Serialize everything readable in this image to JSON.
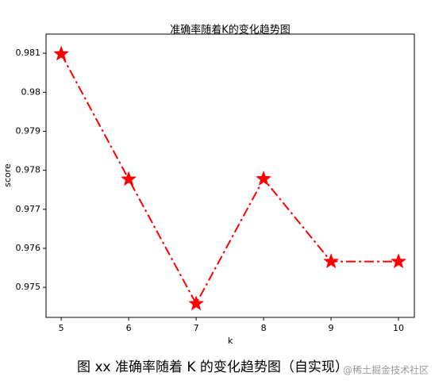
{
  "chart_data": {
    "type": "line",
    "title": "准确率随着K的变化趋势图",
    "xlabel": "k",
    "ylabel": "score",
    "x": [
      5,
      6,
      7,
      8,
      9,
      10
    ],
    "series": [
      {
        "name": "score",
        "color": "#ff0000",
        "linestyle": "dashdot",
        "marker": "star",
        "values": [
          0.98098,
          0.97777,
          0.97458,
          0.97778,
          0.97566,
          0.97566
        ]
      }
    ],
    "xlim": [
      4.775,
      10.235
    ],
    "xticks": [
      5,
      6,
      7,
      8,
      9,
      10
    ],
    "ylim": [
      0.97423,
      0.98149
    ],
    "yticks": [
      0.975,
      0.976,
      0.977,
      0.978,
      0.979,
      0.98,
      0.981
    ],
    "grid": false
  },
  "caption": "图 xx 准确率随着 K 的变化趋势图（自实现）",
  "watermark": "@稀土掘金技术社区"
}
